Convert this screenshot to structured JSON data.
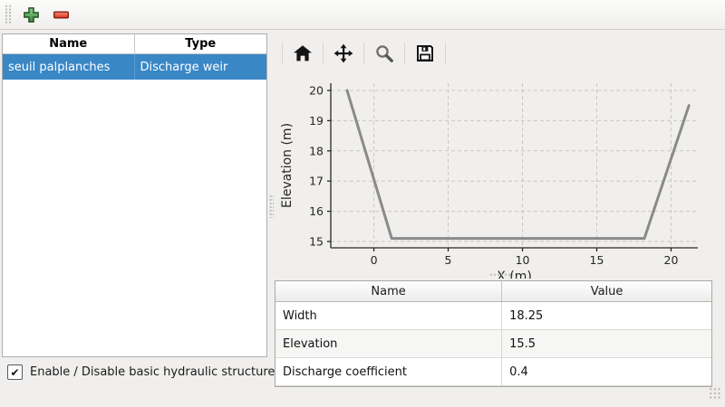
{
  "window": {
    "background": "#f0efed"
  },
  "top_toolbar": {
    "add_button": {
      "icon": "plus-icon",
      "color": "#4a9e4f"
    },
    "remove_button": {
      "icon": "minus-icon",
      "color": "#e2493c"
    }
  },
  "structures_table": {
    "columns": [
      "Name",
      "Type"
    ],
    "rows": [
      {
        "name": "seuil palplanches",
        "type": "Discharge weir",
        "selected": true
      }
    ],
    "selection_color": "#3a87c6"
  },
  "checkbox": {
    "label": "Enable / Disable basic hydraulic structure",
    "checked": true,
    "check_glyph": "✔"
  },
  "plot_toolbar": {
    "icons": [
      "home-icon",
      "pan-icon",
      "magnifier-icon",
      "save-icon"
    ]
  },
  "chart_data": {
    "type": "line",
    "title": "",
    "xlabel": "X (m)",
    "ylabel": "Elevation (m)",
    "x": [
      -1.8,
      1.2,
      18.2,
      21.2
    ],
    "y": [
      20.0,
      15.1,
      15.1,
      19.5
    ],
    "xlim": [
      -2.9,
      21.8
    ],
    "ylim": [
      14.79,
      20.24
    ],
    "xticks": [
      0,
      5,
      10,
      15,
      20
    ],
    "yticks": [
      15,
      16,
      17,
      18,
      19,
      20
    ],
    "grid": true,
    "legend": false,
    "line_color": "#8a8a8a"
  },
  "properties_table": {
    "columns": [
      "Name",
      "Value"
    ],
    "rows": [
      {
        "name": "Width",
        "value": "18.25"
      },
      {
        "name": "Elevation",
        "value": "15.5"
      },
      {
        "name": "Discharge coefficient",
        "value": "0.4"
      }
    ]
  }
}
